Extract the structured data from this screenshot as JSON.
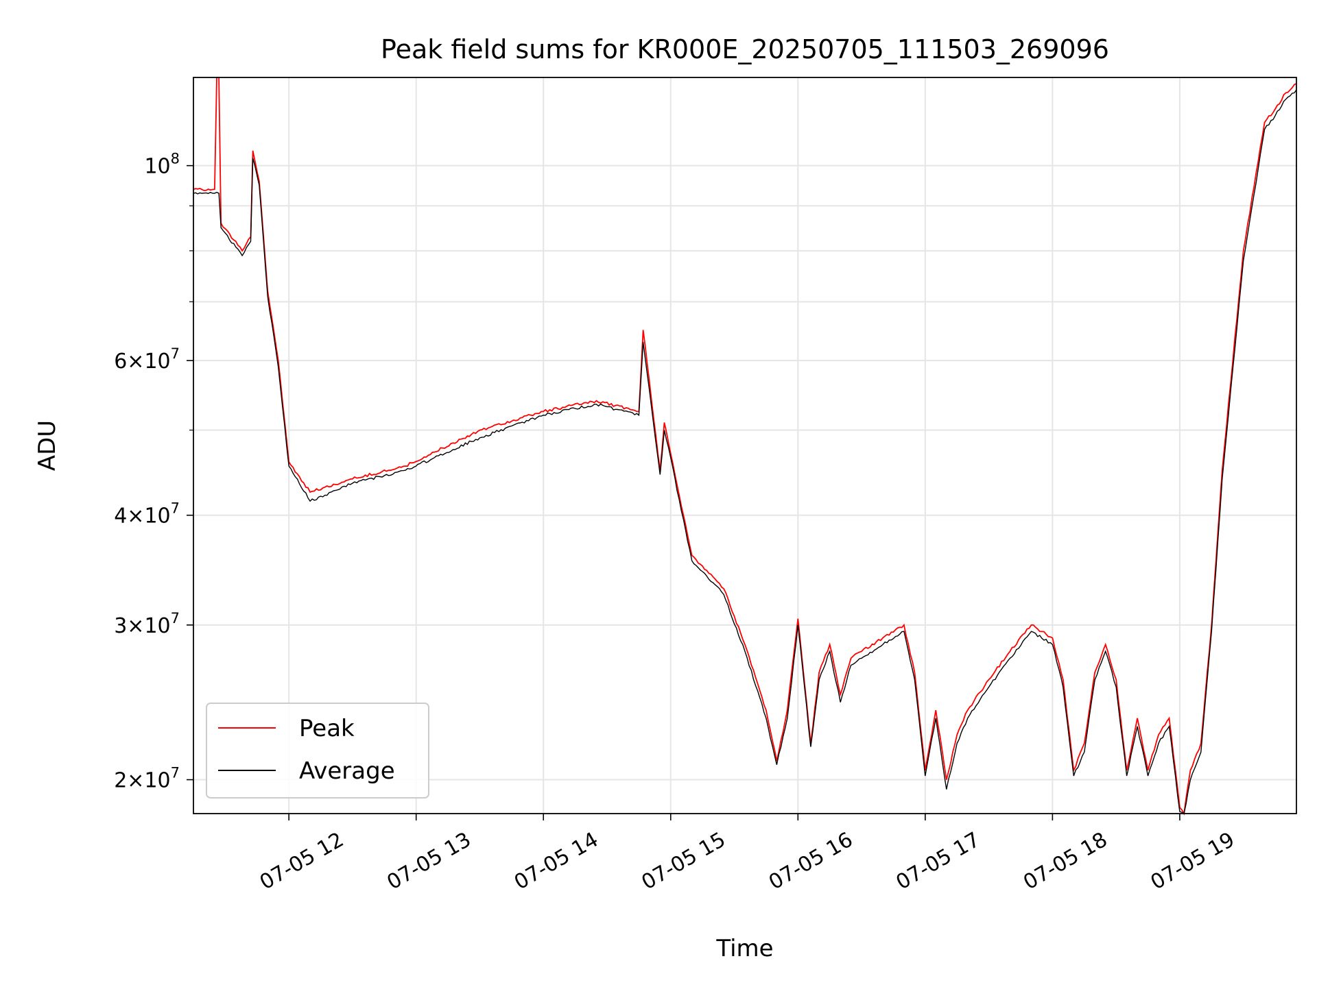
{
  "chart_data": {
    "type": "line",
    "title": "Peak field sums for KR000E_20250705_111503_269096",
    "xlabel": "Time",
    "ylabel": "ADU",
    "y_scale": "log",
    "grid": true,
    "legend_position": "lower-left",
    "xlim": [
      "2025-07-05 11:15",
      "2025-07-05 19:55"
    ],
    "ylim": [
      18300000,
      126000000
    ],
    "x_ticks": [
      "07-05 12",
      "07-05 13",
      "07-05 14",
      "07-05 15",
      "07-05 16",
      "07-05 17",
      "07-05 18",
      "07-05 19"
    ],
    "y_ticks": [
      {
        "value": 20000000,
        "base": "2",
        "exp": "7"
      },
      {
        "value": 30000000,
        "base": "3",
        "exp": "7"
      },
      {
        "value": 40000000,
        "base": "4",
        "exp": "7"
      },
      {
        "value": 60000000,
        "base": "6",
        "exp": "7"
      },
      {
        "value": 100000000,
        "base": "10",
        "exp": "8"
      }
    ],
    "y_ticks_minor": [
      50000000,
      70000000,
      80000000,
      90000000
    ],
    "series": [
      {
        "name": "Peak",
        "color": "#ff0000",
        "x": [
          "2025-07-05 11:15",
          "2025-07-05 11:25",
          "2025-07-05 11:26",
          "2025-07-05 11:27",
          "2025-07-05 11:28",
          "2025-07-05 11:38",
          "2025-07-05 11:42",
          "2025-07-05 11:43",
          "2025-07-05 11:46",
          "2025-07-05 11:50",
          "2025-07-05 11:55",
          "2025-07-05 12:00",
          "2025-07-05 12:10",
          "2025-07-05 12:30",
          "2025-07-05 12:55",
          "2025-07-05 13:30",
          "2025-07-05 14:00",
          "2025-07-05 14:25",
          "2025-07-05 14:45",
          "2025-07-05 14:47",
          "2025-07-05 14:51",
          "2025-07-05 14:55",
          "2025-07-05 14:57",
          "2025-07-05 15:00",
          "2025-07-05 15:05",
          "2025-07-05 15:10",
          "2025-07-05 15:15",
          "2025-07-05 15:25",
          "2025-07-05 15:35",
          "2025-07-05 15:45",
          "2025-07-05 15:50",
          "2025-07-05 15:55",
          "2025-07-05 16:00",
          "2025-07-05 16:06",
          "2025-07-05 16:10",
          "2025-07-05 16:15",
          "2025-07-05 16:20",
          "2025-07-05 16:25",
          "2025-07-05 16:30",
          "2025-07-05 16:40",
          "2025-07-05 16:50",
          "2025-07-05 16:55",
          "2025-07-05 17:00",
          "2025-07-05 17:05",
          "2025-07-05 17:10",
          "2025-07-05 17:15",
          "2025-07-05 17:20",
          "2025-07-05 17:30",
          "2025-07-05 17:40",
          "2025-07-05 17:50",
          "2025-07-05 18:00",
          "2025-07-05 18:05",
          "2025-07-05 18:10",
          "2025-07-05 18:15",
          "2025-07-05 18:20",
          "2025-07-05 18:25",
          "2025-07-05 18:30",
          "2025-07-05 18:35",
          "2025-07-05 18:40",
          "2025-07-05 18:45",
          "2025-07-05 18:50",
          "2025-07-05 18:55",
          "2025-07-05 19:00",
          "2025-07-05 19:02",
          "2025-07-05 19:05",
          "2025-07-05 19:10",
          "2025-07-05 19:15",
          "2025-07-05 19:20",
          "2025-07-05 19:30",
          "2025-07-05 19:40",
          "2025-07-05 19:45",
          "2025-07-05 19:50",
          "2025-07-05 19:55"
        ],
        "y": [
          94000000,
          94000000,
          126000000,
          126000000,
          86000000,
          80000000,
          83000000,
          104000000,
          96000000,
          72000000,
          60000000,
          46000000,
          42500000,
          44000000,
          45500000,
          50000000,
          52500000,
          54000000,
          52500000,
          65000000,
          54000000,
          45000000,
          51000000,
          47000000,
          41000000,
          36000000,
          35000000,
          33000000,
          28500000,
          24000000,
          21000000,
          24000000,
          30500000,
          22000000,
          26500000,
          28500000,
          25000000,
          27500000,
          28000000,
          29000000,
          30000000,
          26500000,
          20500000,
          24000000,
          20000000,
          22500000,
          24000000,
          26000000,
          28000000,
          30000000,
          29000000,
          26000000,
          20500000,
          22000000,
          26500000,
          28500000,
          26000000,
          20500000,
          23500000,
          20500000,
          22500000,
          23500000,
          18600000,
          18300000,
          20500000,
          22000000,
          30000000,
          45000000,
          80000000,
          112000000,
          116000000,
          121000000,
          124000000
        ]
      },
      {
        "name": "Average",
        "color": "#000000",
        "x": [
          "2025-07-05 11:15",
          "2025-07-05 11:25",
          "2025-07-05 11:27",
          "2025-07-05 11:28",
          "2025-07-05 11:38",
          "2025-07-05 11:42",
          "2025-07-05 11:43",
          "2025-07-05 11:46",
          "2025-07-05 11:50",
          "2025-07-05 11:55",
          "2025-07-05 12:00",
          "2025-07-05 12:10",
          "2025-07-05 12:30",
          "2025-07-05 12:55",
          "2025-07-05 13:30",
          "2025-07-05 14:00",
          "2025-07-05 14:25",
          "2025-07-05 14:45",
          "2025-07-05 14:47",
          "2025-07-05 14:51",
          "2025-07-05 14:55",
          "2025-07-05 14:57",
          "2025-07-05 15:00",
          "2025-07-05 15:05",
          "2025-07-05 15:10",
          "2025-07-05 15:15",
          "2025-07-05 15:25",
          "2025-07-05 15:35",
          "2025-07-05 15:45",
          "2025-07-05 15:50",
          "2025-07-05 15:55",
          "2025-07-05 16:00",
          "2025-07-05 16:06",
          "2025-07-05 16:10",
          "2025-07-05 16:15",
          "2025-07-05 16:20",
          "2025-07-05 16:25",
          "2025-07-05 16:30",
          "2025-07-05 16:40",
          "2025-07-05 16:50",
          "2025-07-05 16:55",
          "2025-07-05 17:00",
          "2025-07-05 17:05",
          "2025-07-05 17:10",
          "2025-07-05 17:15",
          "2025-07-05 17:20",
          "2025-07-05 17:30",
          "2025-07-05 17:40",
          "2025-07-05 17:50",
          "2025-07-05 18:00",
          "2025-07-05 18:05",
          "2025-07-05 18:10",
          "2025-07-05 18:15",
          "2025-07-05 18:20",
          "2025-07-05 18:25",
          "2025-07-05 18:30",
          "2025-07-05 18:35",
          "2025-07-05 18:40",
          "2025-07-05 18:45",
          "2025-07-05 18:50",
          "2025-07-05 18:55",
          "2025-07-05 19:00",
          "2025-07-05 19:02",
          "2025-07-05 19:05",
          "2025-07-05 19:10",
          "2025-07-05 19:15",
          "2025-07-05 19:20",
          "2025-07-05 19:30",
          "2025-07-05 19:40",
          "2025-07-05 19:45",
          "2025-07-05 19:50",
          "2025-07-05 19:55"
        ],
        "y": [
          93000000,
          93000000,
          93000000,
          85000000,
          79000000,
          82000000,
          102000000,
          95000000,
          71000000,
          59000000,
          45500000,
          41500000,
          43500000,
          45000000,
          49000000,
          52000000,
          53500000,
          52000000,
          63000000,
          53000000,
          44500000,
          50000000,
          46500000,
          40500000,
          35500000,
          34500000,
          32500000,
          28000000,
          23500000,
          20800000,
          23500000,
          30000000,
          21800000,
          26000000,
          28000000,
          24500000,
          27000000,
          27500000,
          28500000,
          29500000,
          26000000,
          20200000,
          23500000,
          19500000,
          22000000,
          23500000,
          25500000,
          27500000,
          29500000,
          28500000,
          25500000,
          20200000,
          21500000,
          26000000,
          28000000,
          25500000,
          20200000,
          23000000,
          20200000,
          22000000,
          23000000,
          18400000,
          18300000,
          20000000,
          21500000,
          29500000,
          44000000,
          78000000,
          110000000,
          114000000,
          119000000,
          122000000
        ]
      }
    ]
  }
}
